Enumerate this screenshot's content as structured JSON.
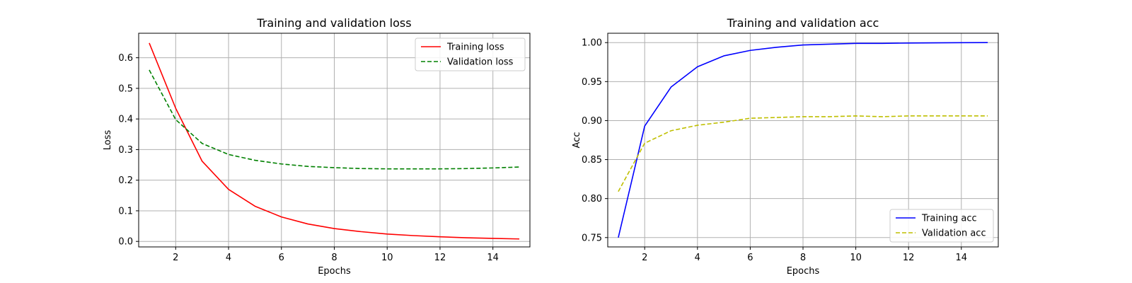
{
  "chart_data": [
    {
      "type": "line",
      "title": "Training and validation loss",
      "xlabel": "Epochs",
      "ylabel": "Loss",
      "xlim": [
        0.6,
        15.4
      ],
      "ylim": [
        -0.018,
        0.68
      ],
      "xticks": [
        2,
        4,
        6,
        8,
        10,
        12,
        14
      ],
      "yticks": [
        0.0,
        0.1,
        0.2,
        0.3,
        0.4,
        0.5,
        0.6
      ],
      "xtick_labels": [
        "2",
        "4",
        "6",
        "8",
        "10",
        "12",
        "14"
      ],
      "ytick_labels": [
        "0.0",
        "0.1",
        "0.2",
        "0.3",
        "0.4",
        "0.5",
        "0.6"
      ],
      "grid": true,
      "legend_position": "top-right",
      "x": [
        1,
        2,
        3,
        4,
        5,
        6,
        7,
        8,
        9,
        10,
        11,
        12,
        13,
        14,
        15
      ],
      "series": [
        {
          "name": "Training loss",
          "color": "#ff0000",
          "style": "solid",
          "values": [
            0.648,
            0.435,
            0.262,
            0.17,
            0.115,
            0.08,
            0.057,
            0.042,
            0.032,
            0.024,
            0.019,
            0.015,
            0.012,
            0.01,
            0.008
          ]
        },
        {
          "name": "Validation loss",
          "color": "#008000",
          "style": "dashed",
          "values": [
            0.56,
            0.398,
            0.32,
            0.284,
            0.265,
            0.253,
            0.245,
            0.241,
            0.238,
            0.237,
            0.237,
            0.237,
            0.238,
            0.24,
            0.243
          ]
        }
      ]
    },
    {
      "type": "line",
      "title": "Training and validation acc",
      "xlabel": "Epochs",
      "ylabel": "Acc",
      "xlim": [
        0.6,
        15.4
      ],
      "ylim": [
        0.738,
        1.012
      ],
      "xticks": [
        2,
        4,
        6,
        8,
        10,
        12,
        14
      ],
      "yticks": [
        0.75,
        0.8,
        0.85,
        0.9,
        0.95,
        1.0
      ],
      "xtick_labels": [
        "2",
        "4",
        "6",
        "8",
        "10",
        "12",
        "14"
      ],
      "ytick_labels": [
        "0.75",
        "0.80",
        "0.85",
        "0.90",
        "0.95",
        "1.00"
      ],
      "grid": true,
      "legend_position": "bottom-right",
      "x": [
        1,
        2,
        3,
        4,
        5,
        6,
        7,
        8,
        9,
        10,
        11,
        12,
        13,
        14,
        15
      ],
      "series": [
        {
          "name": "Training acc",
          "color": "#0000ff",
          "style": "solid",
          "values": [
            0.75,
            0.893,
            0.943,
            0.969,
            0.983,
            0.99,
            0.994,
            0.997,
            0.998,
            0.999,
            0.999,
            0.9995,
            0.9997,
            0.9999,
            1.0
          ]
        },
        {
          "name": "Validation acc",
          "color": "#bfbf00",
          "style": "dashed",
          "values": [
            0.809,
            0.871,
            0.887,
            0.894,
            0.898,
            0.903,
            0.904,
            0.905,
            0.905,
            0.906,
            0.905,
            0.906,
            0.906,
            0.906,
            0.906
          ]
        }
      ]
    }
  ]
}
